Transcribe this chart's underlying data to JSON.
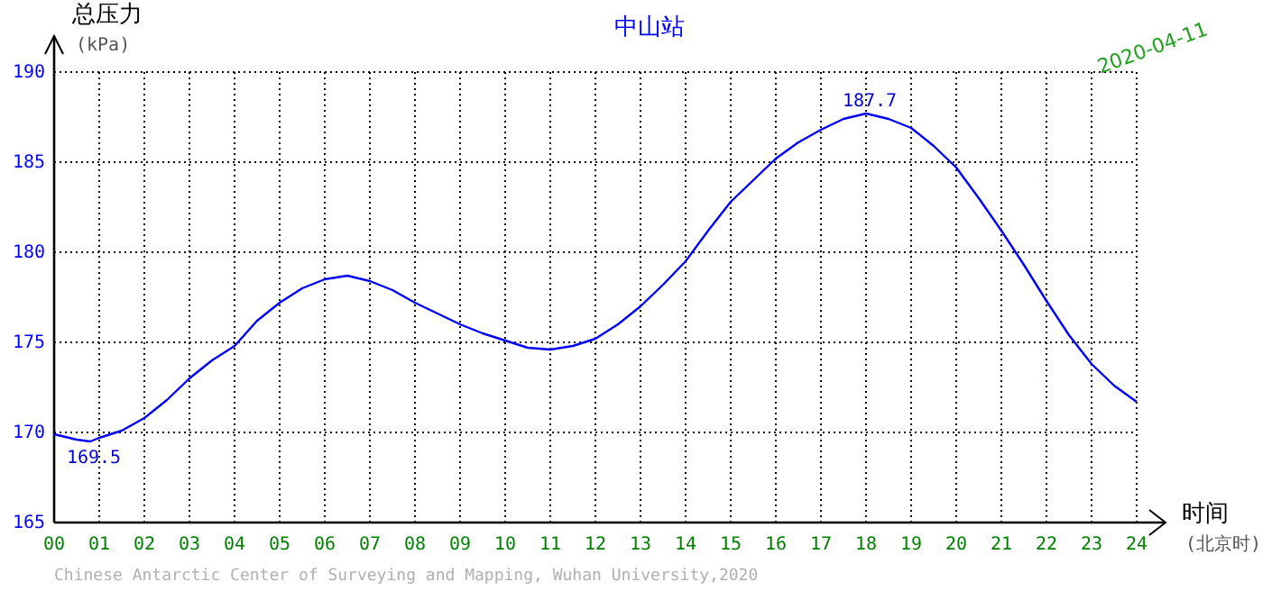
{
  "chart_data": {
    "type": "line",
    "title": "中山站",
    "xlabel": "时间 (北京时)",
    "ylabel": "总压力 (kPa)",
    "x": [
      0,
      0.5,
      0.8,
      1,
      1.5,
      2,
      2.5,
      3,
      3.5,
      4,
      4.5,
      5,
      5.5,
      6,
      6.5,
      7,
      7.5,
      8,
      8.5,
      9,
      9.5,
      10,
      10.5,
      11,
      11.5,
      12,
      12.5,
      13,
      13.5,
      14,
      14.5,
      15,
      15.5,
      16,
      16.5,
      17,
      17.5,
      18,
      18.5,
      19,
      19.5,
      20,
      20.5,
      21,
      21.5,
      22,
      22.5,
      23,
      23.5,
      24
    ],
    "series": [
      {
        "color": "#0000ff",
        "values": [
          169.9,
          169.6,
          169.5,
          169.7,
          170.1,
          170.8,
          171.8,
          173.0,
          174.0,
          174.8,
          176.2,
          177.2,
          178.0,
          178.5,
          178.7,
          178.4,
          177.9,
          177.2,
          176.6,
          176.0,
          175.5,
          175.1,
          174.7,
          174.6,
          174.8,
          175.2,
          176.0,
          177.0,
          178.2,
          179.5,
          181.2,
          182.8,
          184.0,
          185.2,
          186.1,
          186.8,
          187.4,
          187.7,
          187.4,
          186.9,
          185.9,
          184.7,
          183.0,
          181.2,
          179.3,
          177.3,
          175.4,
          173.8,
          172.6,
          171.7
        ]
      }
    ],
    "xlim": [
      0,
      24
    ],
    "ylim": [
      165,
      190
    ],
    "xticks": [
      {
        "value": 0,
        "label": "00"
      },
      {
        "value": 1,
        "label": "01"
      },
      {
        "value": 2,
        "label": "02"
      },
      {
        "value": 3,
        "label": "03"
      },
      {
        "value": 4,
        "label": "04"
      },
      {
        "value": 5,
        "label": "05"
      },
      {
        "value": 6,
        "label": "06"
      },
      {
        "value": 7,
        "label": "07"
      },
      {
        "value": 8,
        "label": "08"
      },
      {
        "value": 9,
        "label": "09"
      },
      {
        "value": 10,
        "label": "10"
      },
      {
        "value": 11,
        "label": "11"
      },
      {
        "value": 12,
        "label": "12"
      },
      {
        "value": 13,
        "label": "13"
      },
      {
        "value": 14,
        "label": "14"
      },
      {
        "value": 15,
        "label": "15"
      },
      {
        "value": 16,
        "label": "16"
      },
      {
        "value": 17,
        "label": "17"
      },
      {
        "value": 18,
        "label": "18"
      },
      {
        "value": 19,
        "label": "19"
      },
      {
        "value": 20,
        "label": "20"
      },
      {
        "value": 21,
        "label": "21"
      },
      {
        "value": 22,
        "label": "22"
      },
      {
        "value": 23,
        "label": "23"
      },
      {
        "value": 24,
        "label": "24"
      }
    ],
    "yticks": [
      165,
      170,
      175,
      180,
      185,
      190
    ],
    "grid": true,
    "annotations": [
      {
        "text": "169.5",
        "x": 0.8,
        "y": 169.5
      },
      {
        "text": "187.7",
        "x": 18,
        "y": 187.7
      },
      "2020-04-11",
      "Chinese Antarctic Center of Surveying and Mapping, Wuhan University,2020"
    ]
  }
}
